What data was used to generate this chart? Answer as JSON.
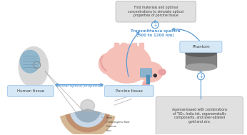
{
  "bg_color": "#ffffff",
  "arrow_color": "#5b9bd5",
  "box_bg": "#e0e0e0",
  "box_edge": "#c0c0c0",
  "text_color": "#404040",
  "blue_text": "#5b9bd5",
  "label_human": "Human tissue",
  "label_porcine": "Porcine tissue",
  "label_phantom": "Phantom",
  "label_similar": "Similar optical properties",
  "label_transmittance": "Transmittance spectra\n(500 to 1200 nm)",
  "box_phantom_text": "Agarose-based with combinations\nof TiO₂, India ink, organometallic\ncomponents, and laser-ablated\ngold and zinc",
  "box_result_text": "Find materials and optimal\nconcentrations to simulate optical\nproperties of porcine tissue",
  "skin_label": "Skin",
  "cranium_label": "Cranium",
  "csf_label": "Cerebrospinal fluid",
  "brain_label": "Brain"
}
